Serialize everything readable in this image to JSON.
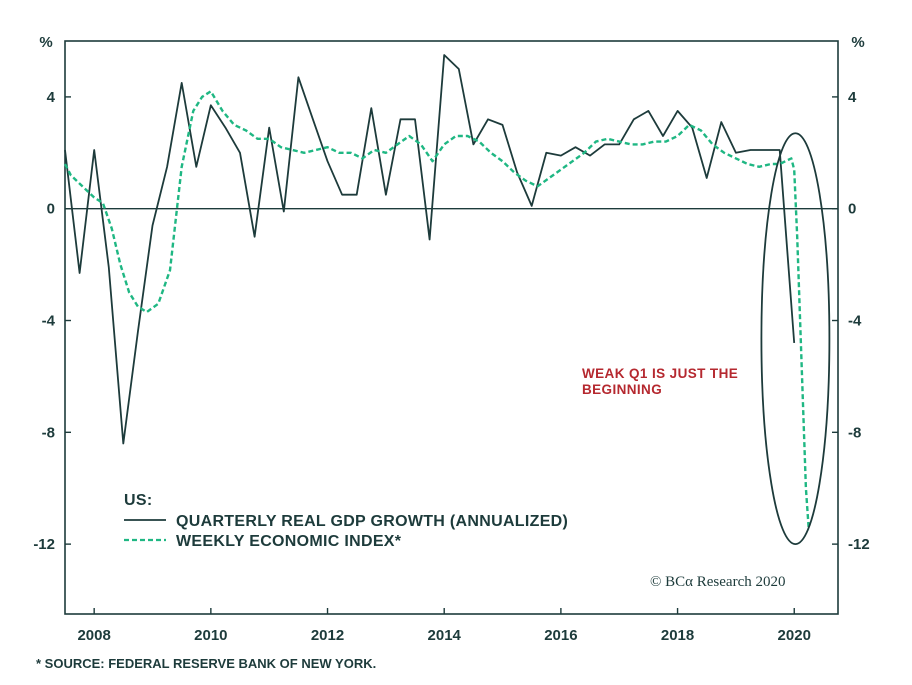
{
  "chart_data": {
    "type": "line",
    "y_unit_label": "%",
    "ylim": [
      -14.5,
      6
    ],
    "y_ticks": [
      4,
      0,
      -4,
      -8,
      -12
    ],
    "x_range": [
      2007.5,
      2020.75
    ],
    "x_ticks": [
      2008,
      2010,
      2012,
      2014,
      2016,
      2018,
      2020
    ],
    "zero_line": true,
    "grid": false,
    "legend": {
      "title": "US:",
      "placement": "bottom-left"
    },
    "series": [
      {
        "name": "QUARTERLY REAL GDP GROWTH (ANNUALIZED)",
        "style": "solid",
        "color": "#1d3b3b",
        "x": [
          2007.5,
          2007.75,
          2008.0,
          2008.25,
          2008.5,
          2008.75,
          2009.0,
          2009.25,
          2009.5,
          2009.75,
          2010.0,
          2010.25,
          2010.5,
          2010.75,
          2011.0,
          2011.25,
          2011.5,
          2011.75,
          2012.0,
          2012.25,
          2012.5,
          2012.75,
          2013.0,
          2013.25,
          2013.5,
          2013.75,
          2014.0,
          2014.25,
          2014.5,
          2014.75,
          2015.0,
          2015.25,
          2015.5,
          2015.75,
          2016.0,
          2016.25,
          2016.5,
          2016.75,
          2017.0,
          2017.25,
          2017.5,
          2017.75,
          2018.0,
          2018.25,
          2018.5,
          2018.75,
          2019.0,
          2019.25,
          2019.5,
          2019.75,
          2020.0
        ],
        "values": [
          2.1,
          -2.3,
          2.1,
          -2.1,
          -8.4,
          -4.4,
          -0.6,
          1.5,
          4.5,
          1.5,
          3.7,
          2.9,
          2.0,
          -1.0,
          2.9,
          -0.1,
          4.7,
          3.2,
          1.7,
          0.5,
          0.5,
          3.6,
          0.5,
          3.2,
          3.2,
          -1.1,
          5.5,
          5.0,
          2.3,
          3.2,
          3.0,
          1.3,
          0.1,
          2.0,
          1.9,
          2.2,
          1.9,
          2.3,
          2.3,
          3.2,
          3.5,
          2.6,
          3.5,
          2.9,
          1.1,
          3.1,
          2.0,
          2.1,
          2.1,
          2.1,
          -4.8
        ]
      },
      {
        "name": "WEEKLY ECONOMIC INDEX*",
        "style": "dashed",
        "color": "#1fb783",
        "x": [
          2007.5,
          2007.6,
          2007.75,
          2007.9,
          2008.0,
          2008.15,
          2008.3,
          2008.45,
          2008.6,
          2008.75,
          2008.9,
          2009.1,
          2009.3,
          2009.5,
          2009.7,
          2009.85,
          2010.0,
          2010.2,
          2010.4,
          2010.6,
          2010.8,
          2011.0,
          2011.2,
          2011.4,
          2011.6,
          2011.8,
          2012.0,
          2012.2,
          2012.4,
          2012.6,
          2012.8,
          2013.0,
          2013.2,
          2013.4,
          2013.6,
          2013.8,
          2014.0,
          2014.2,
          2014.4,
          2014.6,
          2014.8,
          2015.0,
          2015.2,
          2015.4,
          2015.6,
          2015.8,
          2016.0,
          2016.2,
          2016.4,
          2016.6,
          2016.8,
          2017.0,
          2017.2,
          2017.4,
          2017.6,
          2017.8,
          2018.0,
          2018.2,
          2018.4,
          2018.6,
          2018.8,
          2019.0,
          2019.2,
          2019.4,
          2019.6,
          2019.75,
          2019.85,
          2019.95,
          2020.0,
          2020.05,
          2020.1,
          2020.15,
          2020.2,
          2020.25
        ],
        "values": [
          1.6,
          1.2,
          0.9,
          0.6,
          0.4,
          0.2,
          -0.7,
          -2.0,
          -3.0,
          -3.5,
          -3.7,
          -3.4,
          -2.2,
          1.5,
          3.5,
          4.0,
          4.2,
          3.5,
          3.0,
          2.8,
          2.5,
          2.5,
          2.2,
          2.1,
          2.0,
          2.1,
          2.2,
          2.0,
          2.0,
          1.8,
          2.1,
          2.0,
          2.3,
          2.6,
          2.3,
          1.7,
          2.3,
          2.6,
          2.6,
          2.4,
          2.0,
          1.7,
          1.3,
          1.0,
          0.8,
          1.1,
          1.4,
          1.7,
          2.0,
          2.4,
          2.5,
          2.4,
          2.3,
          2.3,
          2.4,
          2.4,
          2.6,
          3.0,
          2.8,
          2.3,
          2.0,
          1.8,
          1.6,
          1.5,
          1.6,
          1.6,
          1.7,
          1.8,
          1.4,
          -1.0,
          -4.0,
          -7.0,
          -10.0,
          -11.5
        ]
      }
    ],
    "annotation": {
      "lines": [
        "WEAK Q1 IS JUST THE",
        "BEGINNING"
      ],
      "color": "#b5282f"
    },
    "highlight": "ellipse around 2020 decline"
  },
  "copyright": "© BCα Research 2020",
  "footnote": "* SOURCE: FEDERAL RESERVE BANK OF NEW YORK."
}
